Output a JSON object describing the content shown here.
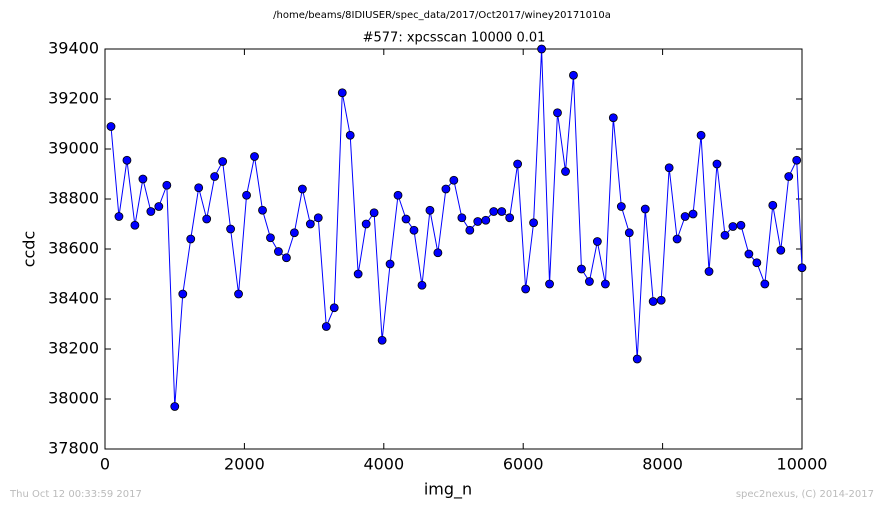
{
  "chart_data": {
    "type": "line",
    "suptitle": "/home/beams/8IDIUSER/spec_data/2017/Oct2017/winey20171010a",
    "title": "#577: xpcsscan 10000 0.01",
    "x_label": "img_n",
    "y_label": "ccdc",
    "footer_left": "Thu Oct 12 00:33:59 2017",
    "footer_right": "spec2nexus, (C) 2014-2017",
    "xlim": [
      0,
      10000
    ],
    "xticks": [
      0,
      2000,
      4000,
      6000,
      8000,
      10000
    ],
    "ylim": [
      37800,
      39400
    ],
    "yticks": [
      37800,
      38000,
      38200,
      38400,
      38600,
      38800,
      39000,
      39200,
      39400
    ],
    "grid": false,
    "series": [
      {
        "color": "#0000ff",
        "x": [
          86,
          200,
          315,
          429,
          544,
          658,
          772,
          887,
          1001,
          1116,
          1230,
          1344,
          1459,
          1573,
          1688,
          1802,
          1916,
          2031,
          2145,
          2260,
          2374,
          2488,
          2603,
          2717,
          2832,
          2946,
          3060,
          3175,
          3289,
          3404,
          3518,
          3632,
          3747,
          3861,
          3976,
          4090,
          4204,
          4319,
          4433,
          4548,
          4662,
          4776,
          4891,
          5005,
          5120,
          5234,
          5348,
          5463,
          5577,
          5692,
          5806,
          5920,
          6035,
          6149,
          6264,
          6378,
          6492,
          6607,
          6721,
          6836,
          6950,
          7064,
          7179,
          7293,
          7408,
          7522,
          7636,
          7751,
          7865,
          7980,
          8094,
          8208,
          8323,
          8437,
          8552,
          8666,
          8780,
          8895,
          9009,
          9124,
          9238,
          9352,
          9467,
          9581,
          9696,
          9810,
          9924,
          10000
        ],
        "values": [
          39090,
          38730,
          38955,
          38695,
          38880,
          38750,
          38770,
          38855,
          37970,
          38420,
          38640,
          38845,
          38720,
          38890,
          38950,
          38680,
          38420,
          38815,
          38970,
          38755,
          38645,
          38590,
          38565,
          38665,
          38840,
          38700,
          38725,
          38290,
          38365,
          39225,
          39055,
          38500,
          38700,
          38745,
          38235,
          38540,
          38815,
          38720,
          38675,
          38455,
          38755,
          38585,
          38840,
          38875,
          38725,
          38675,
          38710,
          38715,
          38750,
          38750,
          38725,
          38940,
          38440,
          38705,
          39400,
          38460,
          39145,
          38910,
          39295,
          38520,
          38470,
          38630,
          38460,
          39125,
          38770,
          38665,
          38160,
          38760,
          38390,
          38395,
          38925,
          38640,
          38730,
          38740,
          39055,
          38510,
          38940,
          38655,
          38690,
          38695,
          38580,
          38545,
          38460,
          38775,
          38595,
          38890,
          38955,
          38525
        ]
      }
    ]
  }
}
